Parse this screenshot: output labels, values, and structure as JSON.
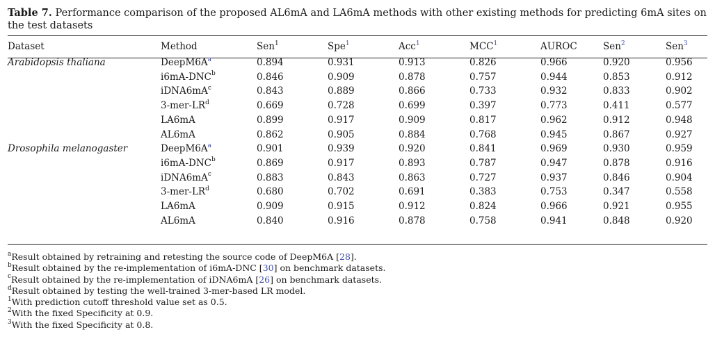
{
  "caption": {
    "label": "Table 7.",
    "text": " Performance comparison of the proposed AL6mA and LA6mA methods with other existing methods for predicting 6mA sites on the test datasets"
  },
  "table": {
    "headers": [
      {
        "text": "Dataset",
        "sup": ""
      },
      {
        "text": "Method",
        "sup": ""
      },
      {
        "text": "Sen",
        "sup": "1"
      },
      {
        "text": "Spe",
        "sup": "1"
      },
      {
        "text": "Acc",
        "sup": "1"
      },
      {
        "text": "MCC",
        "sup": "1"
      },
      {
        "text": "AUROC",
        "sup": ""
      },
      {
        "text": "Sen",
        "sup": "2"
      },
      {
        "text": "Sen",
        "sup": "3"
      }
    ],
    "groups": [
      {
        "dataset": "Arabidopsis thaliana",
        "rows": [
          {
            "method": "DeepM6A",
            "sup": "a",
            "values": [
              "0.894",
              "0.931",
              "0.913",
              "0.826",
              "0.966",
              "0.920",
              "0.956"
            ]
          },
          {
            "method": "i6mA-DNC",
            "sup": "b",
            "values": [
              "0.846",
              "0.909",
              "0.878",
              "0.757",
              "0.944",
              "0.853",
              "0.912"
            ]
          },
          {
            "method": "iDNA6mA",
            "sup": "c",
            "values": [
              "0.843",
              "0.889",
              "0.866",
              "0.733",
              "0.932",
              "0.833",
              "0.902"
            ]
          },
          {
            "method": "3-mer-LR",
            "sup": "d",
            "values": [
              "0.669",
              "0.728",
              "0.699",
              "0.397",
              "0.773",
              "0.411",
              "0.577"
            ]
          },
          {
            "method": "LA6mA",
            "sup": "",
            "values": [
              "0.899",
              "0.917",
              "0.909",
              "0.817",
              "0.962",
              "0.912",
              "0.948"
            ]
          },
          {
            "method": "AL6mA",
            "sup": "",
            "values": [
              "0.862",
              "0.905",
              "0.884",
              "0.768",
              "0.945",
              "0.867",
              "0.927"
            ]
          }
        ]
      },
      {
        "dataset": "Drosophila melanogaster",
        "rows": [
          {
            "method": "DeepM6A",
            "sup": "a",
            "values": [
              "0.901",
              "0.939",
              "0.920",
              "0.841",
              "0.969",
              "0.930",
              "0.959"
            ]
          },
          {
            "method": "i6mA-DNC",
            "sup": "b",
            "values": [
              "0.869",
              "0.917",
              "0.893",
              "0.787",
              "0.947",
              "0.878",
              "0.916"
            ]
          },
          {
            "method": "iDNA6mA",
            "sup": "c",
            "values": [
              "0.883",
              "0.843",
              "0.863",
              "0.727",
              "0.937",
              "0.846",
              "0.904"
            ]
          },
          {
            "method": "3-mer-LR",
            "sup": "d",
            "values": [
              "0.680",
              "0.702",
              "0.691",
              "0.383",
              "0.753",
              "0.347",
              "0.558"
            ]
          },
          {
            "method": "LA6mA",
            "sup": "",
            "values": [
              "0.909",
              "0.915",
              "0.912",
              "0.824",
              "0.966",
              "0.921",
              "0.955"
            ]
          },
          {
            "method": "AL6mA",
            "sup": "",
            "values": [
              "0.840",
              "0.916",
              "0.878",
              "0.758",
              "0.941",
              "0.848",
              "0.920"
            ]
          }
        ]
      }
    ]
  },
  "footnotes": [
    {
      "mark": "a",
      "pre": "Result obtained by retraining and retesting the source code of DeepM6A [",
      "ref": "28",
      "post": "]."
    },
    {
      "mark": "b",
      "pre": "Result obtained by the re-implementation of i6mA-DNC [",
      "ref": "30",
      "post": "] on benchmark datasets."
    },
    {
      "mark": "c",
      "pre": "Result obtained by the re-implementation of iDNA6mA [",
      "ref": "26",
      "post": "] on benchmark datasets."
    },
    {
      "mark": "d",
      "pre": "Result obtained by testing the well-trained 3-mer-based LR model.",
      "ref": "",
      "post": ""
    },
    {
      "mark": "1",
      "pre": "With prediction cutoff threshold value set as 0.5.",
      "ref": "",
      "post": ""
    },
    {
      "mark": "2",
      "pre": "With the fixed Specificity at 0.9.",
      "ref": "",
      "post": ""
    },
    {
      "mark": "3",
      "pre": "With the fixed Specificity at 0.8.",
      "ref": "",
      "post": ""
    }
  ]
}
